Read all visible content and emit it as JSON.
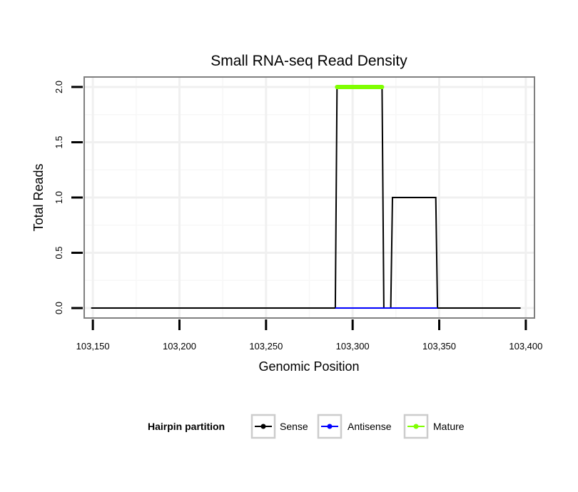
{
  "chart_data": {
    "type": "line",
    "title": "Small RNA-seq Read Density",
    "xlabel": "Genomic Position",
    "ylabel": "Total Reads",
    "xlim": [
      103145,
      103405
    ],
    "ylim": [
      -0.09,
      2.09
    ],
    "x_ticks": [
      103150,
      103200,
      103250,
      103300,
      103350,
      103400
    ],
    "x_tick_labels": [
      "103,150",
      "103,200",
      "103,250",
      "103,300",
      "103,350",
      "103,400"
    ],
    "y_ticks": [
      0,
      0.5,
      1,
      1.5,
      2
    ],
    "y_tick_labels": [
      "0.0",
      "0.5",
      "1.0",
      "1.5",
      "2.0"
    ],
    "series": [
      {
        "name": "Sense",
        "color": "#000000",
        "x": [
          103149,
          103290,
          103291,
          103317,
          103318,
          103322,
          103323,
          103348,
          103349,
          103397
        ],
        "y": [
          0,
          0,
          2,
          2,
          0,
          0,
          1,
          1,
          0,
          0
        ]
      },
      {
        "name": "Antisense",
        "color": "#0000ff",
        "x": [
          103290,
          103349
        ],
        "y": [
          0,
          0
        ]
      },
      {
        "name": "Mature",
        "color": "#7fff00",
        "x": [
          103291,
          103317
        ],
        "y": [
          2,
          2
        ]
      }
    ],
    "legend": {
      "title": "Hairpin partition",
      "position": "bottom",
      "entries": [
        "Sense",
        "Antisense",
        "Mature"
      ]
    },
    "grid": true
  }
}
